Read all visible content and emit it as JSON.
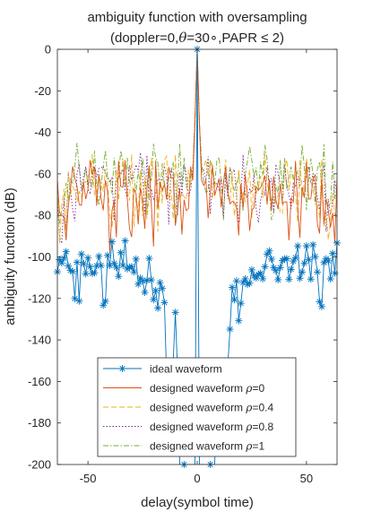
{
  "chart_data": {
    "type": "line",
    "title_line1": "ambiguity function with oversampling",
    "title_line2_prefix": "(doppler=0,",
    "title_line2_theta": "θ",
    "title_line2_suffix": "=30∘,PAPR ≤ 2)",
    "xlabel": "delay(symbol time)",
    "ylabel": "ambiguity function (dB)",
    "xlim": [
      -64,
      64
    ],
    "ylim": [
      -200,
      0
    ],
    "xticks": [
      -50,
      0,
      50
    ],
    "yticks": [
      0,
      -20,
      -40,
      -60,
      -80,
      -100,
      -120,
      -140,
      -160,
      -180,
      -200
    ],
    "grid": false,
    "legend_position": "bottom-center",
    "series": [
      {
        "name": "ideal waveform",
        "color": "#0072BD",
        "style": "solid-star",
        "peak": 0,
        "near_zero": [
          -200,
          -200,
          -200,
          -200,
          -200,
          -200,
          -200,
          -200,
          0,
          -200,
          -200,
          -200,
          -200,
          -200,
          -200,
          -200,
          -200
        ],
        "floor_outer": -104,
        "floor_inner": -130,
        "dips": [
          [
            -6,
            -200
          ],
          [
            6,
            -200
          ],
          [
            -12,
            -183
          ],
          [
            12,
            -183
          ]
        ]
      },
      {
        "name": "designed waveform ρ=0",
        "name_prefix": "designed waveform ",
        "rho_symbol": "ρ",
        "rho_value": "=0",
        "color": "#D95319",
        "style": "solid",
        "peak": 0,
        "floor": -63,
        "dips": [
          [
            -40,
            -98
          ],
          [
            -20,
            -95
          ],
          [
            42,
            -92
          ]
        ]
      },
      {
        "name": "designed waveform ρ=0.4",
        "name_prefix": "designed waveform ",
        "rho_symbol": "ρ",
        "rho_value": "=0.4",
        "color": "#EDB120",
        "style": "dashed",
        "peak": 0,
        "floor": -60,
        "dips": []
      },
      {
        "name": "designed waveform ρ=0.8",
        "name_prefix": "designed waveform ",
        "rho_symbol": "ρ",
        "rho_value": "=0.8",
        "color": "#7E2F8E",
        "style": "dotted",
        "peak": 0,
        "floor": -58,
        "dips": []
      },
      {
        "name": "designed waveform ρ=1",
        "name_prefix": "designed waveform ",
        "rho_symbol": "ρ",
        "rho_value": "=1",
        "color": "#77AC30",
        "style": "dashdot",
        "peak": 0,
        "floor": -55,
        "dips": []
      }
    ]
  }
}
